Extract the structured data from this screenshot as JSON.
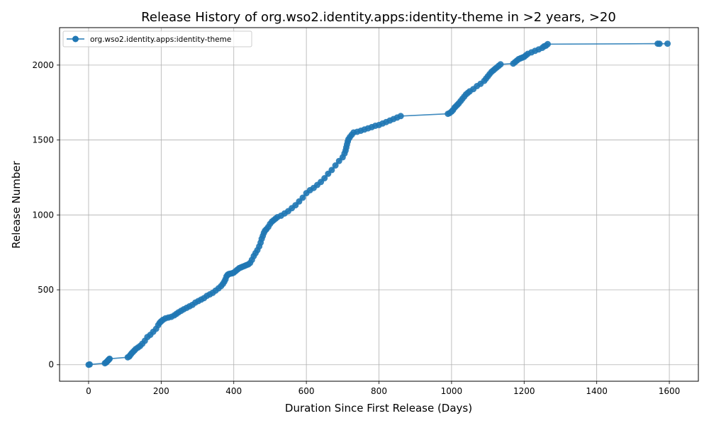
{
  "chart_data": {
    "type": "line",
    "title": "Release History of org.wso2.identity.apps:identity-theme in >2 years, >20",
    "xlabel": "Duration Since First Release (Days)",
    "ylabel": "Release Number",
    "xlim": [
      -80,
      1680
    ],
    "ylim": [
      -110,
      2250
    ],
    "x_ticks": [
      0,
      200,
      400,
      600,
      800,
      1000,
      1200,
      1400,
      1600
    ],
    "y_ticks": [
      0,
      500,
      1000,
      1500,
      2000
    ],
    "grid": true,
    "legend_position": "top-left",
    "marker": "circle",
    "series_color": "#1f77b4",
    "series": [
      {
        "name": "org.wso2.identity.apps:identity-theme",
        "x": [
          0,
          3,
          45,
          48,
          50,
          52,
          54,
          56,
          58,
          108,
          112,
          115,
          118,
          122,
          126,
          130,
          136,
          142,
          148,
          155,
          162,
          170,
          178,
          186,
          192,
          196,
          200,
          205,
          212,
          220,
          228,
          236,
          242,
          248,
          255,
          262,
          270,
          278,
          286,
          294,
          302,
          310,
          318,
          326,
          334,
          342,
          350,
          358,
          365,
          370,
          374,
          377,
          380,
          383,
          386,
          390,
          395,
          400,
          405,
          410,
          415,
          420,
          425,
          430,
          435,
          440,
          445,
          450,
          455,
          460,
          465,
          470,
          474,
          477,
          480,
          483,
          486,
          490,
          495,
          500,
          505,
          510,
          515,
          520,
          530,
          540,
          550,
          560,
          570,
          580,
          590,
          600,
          610,
          620,
          630,
          640,
          650,
          660,
          670,
          680,
          690,
          700,
          705,
          708,
          710,
          712,
          714,
          716,
          720,
          725,
          730,
          740,
          750,
          760,
          770,
          780,
          790,
          800,
          810,
          820,
          830,
          840,
          850,
          860,
          990,
          995,
          1000,
          1004,
          1008,
          1012,
          1016,
          1020,
          1025,
          1030,
          1035,
          1040,
          1045,
          1050,
          1060,
          1070,
          1080,
          1090,
          1095,
          1100,
          1105,
          1110,
          1115,
          1120,
          1125,
          1130,
          1135,
          1170,
          1175,
          1180,
          1185,
          1190,
          1195,
          1200,
          1205,
          1210,
          1220,
          1230,
          1240,
          1250,
          1255,
          1260,
          1265,
          1568,
          1573,
          1595
        ],
        "y": [
          0,
          2,
          10,
          15,
          20,
          25,
          30,
          35,
          40,
          50,
          55,
          65,
          75,
          85,
          95,
          105,
          115,
          125,
          140,
          160,
          185,
          200,
          220,
          240,
          265,
          280,
          290,
          300,
          310,
          315,
          320,
          330,
          340,
          350,
          360,
          370,
          380,
          390,
          400,
          415,
          425,
          435,
          445,
          460,
          470,
          480,
          495,
          510,
          525,
          540,
          555,
          570,
          590,
          600,
          605,
          608,
          610,
          615,
          625,
          635,
          645,
          650,
          655,
          660,
          665,
          670,
          680,
          700,
          725,
          745,
          765,
          790,
          815,
          840,
          860,
          880,
          895,
          905,
          920,
          940,
          955,
          965,
          975,
          985,
          995,
          1010,
          1025,
          1045,
          1065,
          1090,
          1115,
          1145,
          1165,
          1180,
          1200,
          1220,
          1245,
          1275,
          1300,
          1330,
          1360,
          1385,
          1410,
          1430,
          1450,
          1470,
          1490,
          1505,
          1520,
          1535,
          1550,
          1555,
          1562,
          1570,
          1578,
          1586,
          1595,
          1600,
          1610,
          1620,
          1630,
          1640,
          1650,
          1660,
          1675,
          1680,
          1690,
          1700,
          1715,
          1725,
          1735,
          1745,
          1760,
          1775,
          1790,
          1805,
          1815,
          1825,
          1840,
          1860,
          1875,
          1895,
          1910,
          1925,
          1940,
          1955,
          1965,
          1975,
          1985,
          1995,
          2005,
          2010,
          2020,
          2030,
          2040,
          2045,
          2050,
          2055,
          2065,
          2075,
          2085,
          2095,
          2105,
          2115,
          2125,
          2130,
          2140,
          2143,
          2142,
          2143
        ]
      }
    ]
  }
}
